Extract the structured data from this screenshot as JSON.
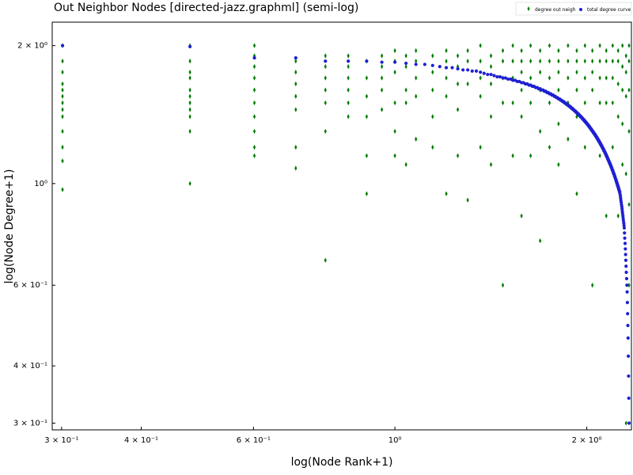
{
  "chart_data": {
    "type": "scatter",
    "title": "Out Neighbor Nodes [directed-jazz.graphml] (semi-log)",
    "xlabel": "log(Node Rank+1)",
    "ylabel": "log(Node Degree+1)",
    "x_scale": "log",
    "y_scale": "log",
    "xlim": [
      0.29,
      2.35
    ],
    "ylim": [
      0.29,
      2.25
    ],
    "grid": false,
    "legend_position": "top-right",
    "x_ticks": [
      {
        "value": 0.3,
        "label": "3 × 10⁻¹"
      },
      {
        "value": 0.4,
        "label": "4 × 10⁻¹"
      },
      {
        "value": 0.6,
        "label": "6 × 10⁻¹"
      },
      {
        "value": 1.0,
        "label": "10⁰"
      },
      {
        "value": 2.0,
        "label": "2 × 10⁰"
      }
    ],
    "y_ticks": [
      {
        "value": 0.3,
        "label": "3 × 10⁻¹"
      },
      {
        "value": 0.4,
        "label": "4 × 10⁻¹"
      },
      {
        "value": 0.6,
        "label": "6 × 10⁻¹"
      },
      {
        "value": 1.0,
        "label": "10⁰"
      },
      {
        "value": 2.0,
        "label": "2 × 10⁰"
      }
    ],
    "series": [
      {
        "name": "degree out neigh",
        "marker": "diamond",
        "color": "#007a00",
        "x": [
          0.301,
          0.301,
          0.301,
          0.301,
          0.301,
          0.301,
          0.301,
          0.301,
          0.301,
          0.301,
          0.301,
          0.301,
          0.301,
          0.477,
          0.477,
          0.477,
          0.477,
          0.477,
          0.477,
          0.477,
          0.477,
          0.477,
          0.477,
          0.477,
          0.602,
          0.602,
          0.602,
          0.602,
          0.602,
          0.602,
          0.602,
          0.602,
          0.602,
          0.602,
          0.699,
          0.699,
          0.699,
          0.699,
          0.699,
          0.699,
          0.699,
          0.778,
          0.778,
          0.778,
          0.778,
          0.778,
          0.778,
          0.778,
          0.845,
          0.845,
          0.845,
          0.845,
          0.845,
          0.845,
          0.903,
          0.903,
          0.903,
          0.903,
          0.903,
          0.903,
          0.954,
          0.954,
          0.954,
          0.954,
          0.954,
          1.0,
          1.0,
          1.0,
          1.0,
          1.0,
          1.0,
          1.041,
          1.041,
          1.041,
          1.041,
          1.041,
          1.079,
          1.079,
          1.079,
          1.079,
          1.079,
          1.146,
          1.146,
          1.146,
          1.146,
          1.146,
          1.204,
          1.204,
          1.204,
          1.204,
          1.204,
          1.255,
          1.255,
          1.255,
          1.255,
          1.255,
          1.301,
          1.301,
          1.301,
          1.301,
          1.362,
          1.362,
          1.362,
          1.362,
          1.362,
          1.415,
          1.415,
          1.415,
          1.415,
          1.415,
          1.477,
          1.477,
          1.477,
          1.477,
          1.477,
          1.531,
          1.531,
          1.531,
          1.531,
          1.531,
          1.58,
          1.58,
          1.58,
          1.58,
          1.58,
          1.58,
          1.633,
          1.633,
          1.633,
          1.633,
          1.633,
          1.69,
          1.69,
          1.69,
          1.69,
          1.69,
          1.69,
          1.748,
          1.748,
          1.748,
          1.748,
          1.748,
          1.806,
          1.806,
          1.806,
          1.806,
          1.806,
          1.806,
          1.869,
          1.869,
          1.869,
          1.869,
          1.869,
          1.929,
          1.929,
          1.929,
          1.929,
          1.929,
          1.929,
          1.987,
          1.987,
          1.987,
          1.987,
          1.987,
          2.041,
          2.041,
          2.041,
          2.041,
          2.041,
          2.041,
          2.097,
          2.097,
          2.097,
          2.097,
          2.097,
          2.146,
          2.146,
          2.146,
          2.146,
          2.146,
          2.196,
          2.196,
          2.196,
          2.196,
          2.196,
          2.24,
          2.24,
          2.24,
          2.24,
          2.24,
          2.275,
          2.275,
          2.275,
          2.275,
          2.275,
          2.305,
          2.305,
          2.305,
          2.305,
          2.305,
          2.33,
          2.33,
          2.33,
          2.33,
          2.33,
          2.33
        ],
        "y": [
          2.0,
          1.85,
          1.75,
          1.65,
          1.6,
          1.55,
          1.5,
          1.45,
          1.4,
          1.3,
          1.2,
          1.12,
          0.97,
          2.0,
          1.85,
          1.75,
          1.7,
          1.6,
          1.55,
          1.5,
          1.45,
          1.4,
          1.3,
          1.0,
          2.0,
          1.9,
          1.8,
          1.7,
          1.6,
          1.5,
          1.4,
          1.3,
          1.2,
          1.15,
          1.85,
          1.75,
          1.65,
          1.55,
          1.45,
          1.2,
          1.08,
          1.9,
          1.8,
          1.7,
          1.6,
          1.5,
          1.3,
          0.68,
          1.9,
          1.8,
          1.7,
          1.6,
          1.5,
          1.4,
          1.85,
          1.7,
          1.55,
          1.4,
          1.15,
          0.95,
          1.9,
          1.8,
          1.7,
          1.6,
          1.45,
          1.95,
          1.85,
          1.75,
          1.5,
          1.3,
          1.15,
          1.9,
          1.8,
          1.6,
          1.5,
          1.1,
          1.95,
          1.85,
          1.7,
          1.55,
          1.25,
          1.9,
          1.75,
          1.6,
          1.4,
          1.2,
          1.95,
          1.85,
          1.7,
          1.55,
          0.95,
          1.9,
          1.8,
          1.65,
          1.45,
          1.15,
          1.95,
          1.85,
          1.65,
          0.92,
          2.0,
          1.85,
          1.7,
          1.55,
          1.2,
          1.9,
          1.8,
          1.65,
          1.4,
          1.1,
          1.95,
          1.85,
          1.7,
          1.5,
          0.6,
          2.0,
          1.85,
          1.7,
          1.5,
          1.15,
          1.95,
          1.85,
          1.75,
          1.6,
          1.4,
          0.85,
          2.0,
          1.85,
          1.7,
          1.5,
          1.15,
          1.95,
          1.85,
          1.75,
          1.6,
          1.3,
          0.75,
          2.0,
          1.85,
          1.7,
          1.5,
          1.2,
          1.95,
          1.85,
          1.75,
          1.6,
          1.35,
          1.1,
          2.0,
          1.85,
          1.7,
          1.5,
          1.25,
          1.95,
          1.85,
          1.75,
          1.6,
          1.4,
          0.95,
          2.0,
          1.85,
          1.7,
          1.5,
          1.2,
          1.95,
          1.85,
          1.75,
          1.6,
          1.3,
          0.6,
          2.0,
          1.85,
          1.7,
          1.5,
          1.15,
          1.95,
          1.85,
          1.7,
          1.5,
          0.85,
          2.0,
          1.85,
          1.7,
          1.5,
          1.2,
          1.95,
          1.85,
          1.65,
          1.4,
          0.85,
          2.0,
          1.8,
          1.6,
          1.35,
          1.1,
          1.9,
          1.75,
          1.55,
          1.05,
          0.3,
          2.0,
          1.85,
          1.6,
          1.3,
          0.9,
          0.6
        ]
      },
      {
        "name": "total degree curve",
        "marker": "circle",
        "color": "#1f1fd2",
        "x": [
          0.301,
          0.477,
          0.602,
          0.699,
          0.778,
          0.845,
          0.903,
          0.954,
          1.0,
          1.041,
          1.079,
          1.114,
          1.146,
          1.176,
          1.204,
          1.23,
          1.255,
          1.279,
          1.301,
          1.322,
          1.342,
          1.362,
          1.38,
          1.398,
          1.415,
          1.431,
          1.447,
          1.462,
          1.477,
          1.491,
          1.505,
          1.519,
          1.531,
          1.544,
          1.556,
          1.568,
          1.58,
          1.591,
          1.602,
          1.613,
          1.623,
          1.633,
          1.643,
          1.653,
          1.662,
          1.672,
          1.681,
          1.69,
          1.699,
          1.708,
          1.716,
          1.724,
          1.732,
          1.74,
          1.748,
          1.756,
          1.763,
          1.771,
          1.778,
          1.785,
          1.792,
          1.799,
          1.806,
          1.813,
          1.82,
          1.826,
          1.833,
          1.839,
          1.845,
          1.851,
          1.857,
          1.863,
          1.869,
          1.875,
          1.881,
          1.886,
          1.892,
          1.898,
          1.903,
          1.908,
          1.914,
          1.919,
          1.924,
          1.929,
          1.934,
          1.94,
          1.944,
          1.949,
          1.954,
          1.959,
          1.964,
          1.968,
          1.973,
          1.978,
          1.982,
          1.987,
          1.991,
          1.996,
          2.0,
          2.004,
          2.009,
          2.013,
          2.017,
          2.021,
          2.025,
          2.029,
          2.033,
          2.037,
          2.041,
          2.045,
          2.049,
          2.053,
          2.057,
          2.061,
          2.064,
          2.068,
          2.072,
          2.076,
          2.079,
          2.083,
          2.086,
          2.09,
          2.093,
          2.097,
          2.1,
          2.104,
          2.107,
          2.111,
          2.114,
          2.117,
          2.121,
          2.124,
          2.127,
          2.13,
          2.134,
          2.137,
          2.14,
          2.143,
          2.146,
          2.149,
          2.152,
          2.155,
          2.158,
          2.161,
          2.164,
          2.167,
          2.17,
          2.173,
          2.176,
          2.179,
          2.182,
          2.185,
          2.188,
          2.19,
          2.193,
          2.196,
          2.199,
          2.201,
          2.204,
          2.207,
          2.21,
          2.212,
          2.215,
          2.217,
          2.22,
          2.223,
          2.225,
          2.228,
          2.23,
          2.233,
          2.235,
          2.238,
          2.24,
          2.243,
          2.245,
          2.248,
          2.25,
          2.253,
          2.255,
          2.258,
          2.26,
          2.262,
          2.265,
          2.267,
          2.27,
          2.272,
          2.274,
          2.276,
          2.279,
          2.281,
          2.283,
          2.286,
          2.288,
          2.29,
          2.292,
          2.294,
          2.297,
          2.299,
          2.301,
          2.303,
          2.305,
          2.307,
          2.31,
          2.312,
          2.314,
          2.316,
          2.318,
          2.32,
          2.322,
          2.324,
          2.326,
          2.328,
          2.33
        ],
        "y": [
          2.0,
          1.99,
          1.88,
          1.88,
          1.85,
          1.85,
          1.85,
          1.84,
          1.84,
          1.83,
          1.82,
          1.82,
          1.81,
          1.8,
          1.79,
          1.79,
          1.78,
          1.77,
          1.77,
          1.76,
          1.76,
          1.75,
          1.74,
          1.73,
          1.73,
          1.72,
          1.71,
          1.71,
          1.7,
          1.7,
          1.69,
          1.69,
          1.68,
          1.68,
          1.67,
          1.67,
          1.66,
          1.66,
          1.65,
          1.65,
          1.64,
          1.64,
          1.63,
          1.63,
          1.62,
          1.62,
          1.61,
          1.61,
          1.6,
          1.6,
          1.59,
          1.59,
          1.58,
          1.58,
          1.57,
          1.57,
          1.56,
          1.56,
          1.55,
          1.55,
          1.54,
          1.54,
          1.53,
          1.53,
          1.52,
          1.52,
          1.51,
          1.51,
          1.5,
          1.5,
          1.49,
          1.49,
          1.48,
          1.48,
          1.47,
          1.47,
          1.46,
          1.46,
          1.45,
          1.45,
          1.44,
          1.44,
          1.43,
          1.43,
          1.42,
          1.42,
          1.41,
          1.41,
          1.4,
          1.4,
          1.39,
          1.39,
          1.38,
          1.38,
          1.37,
          1.37,
          1.36,
          1.36,
          1.35,
          1.35,
          1.34,
          1.34,
          1.33,
          1.33,
          1.32,
          1.32,
          1.31,
          1.31,
          1.3,
          1.3,
          1.29,
          1.29,
          1.28,
          1.28,
          1.27,
          1.27,
          1.26,
          1.26,
          1.25,
          1.25,
          1.24,
          1.24,
          1.23,
          1.23,
          1.22,
          1.22,
          1.21,
          1.21,
          1.2,
          1.2,
          1.19,
          1.19,
          1.18,
          1.18,
          1.17,
          1.17,
          1.16,
          1.16,
          1.15,
          1.15,
          1.14,
          1.14,
          1.13,
          1.13,
          1.12,
          1.12,
          1.11,
          1.11,
          1.1,
          1.1,
          1.09,
          1.09,
          1.08,
          1.08,
          1.07,
          1.07,
          1.06,
          1.06,
          1.05,
          1.05,
          1.04,
          1.04,
          1.03,
          1.03,
          1.02,
          1.02,
          1.01,
          1.01,
          1.0,
          1.0,
          0.99,
          0.99,
          0.98,
          0.98,
          0.97,
          0.97,
          0.96,
          0.96,
          0.95,
          0.94,
          0.93,
          0.92,
          0.91,
          0.9,
          0.89,
          0.88,
          0.87,
          0.86,
          0.85,
          0.84,
          0.83,
          0.82,
          0.81,
          0.8,
          0.78,
          0.76,
          0.74,
          0.72,
          0.7,
          0.68,
          0.66,
          0.64,
          0.62,
          0.6,
          0.58,
          0.55,
          0.52,
          0.49,
          0.46,
          0.42,
          0.38,
          0.34,
          0.3
        ]
      }
    ]
  }
}
